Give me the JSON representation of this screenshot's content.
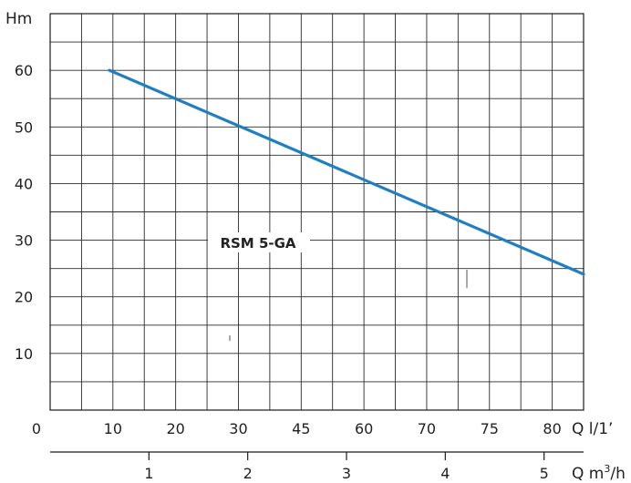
{
  "chart_data": {
    "type": "line",
    "y_unit_label": "Hm",
    "x_unit_label": "Q l/1’",
    "x2_unit_label": "Q m",
    "x2_unit_sup": "3",
    "x2_unit_suffix": "/h",
    "y_ticks": [
      "10",
      "20",
      "30",
      "40",
      "50",
      "60"
    ],
    "y_tick_values": [
      10,
      20,
      30,
      40,
      50,
      60
    ],
    "ylim": [
      0,
      70
    ],
    "x_origin_label": "0",
    "x_ticks": [
      "10",
      "20",
      "30",
      "45",
      "60",
      "70",
      "75",
      "80"
    ],
    "x2_ticks": [
      "1",
      "2",
      "3",
      "4",
      "5"
    ],
    "x2_tick_values": [
      1,
      2,
      3,
      4,
      5
    ],
    "xlim_m3h": [
      0,
      5.4
    ],
    "grid": true,
    "series": [
      {
        "name": "RSM 5-GA",
        "color": "#1f7fc1",
        "points_m3h": [
          [
            0.6,
            60
          ],
          [
            5.4,
            24
          ]
        ]
      }
    ]
  }
}
